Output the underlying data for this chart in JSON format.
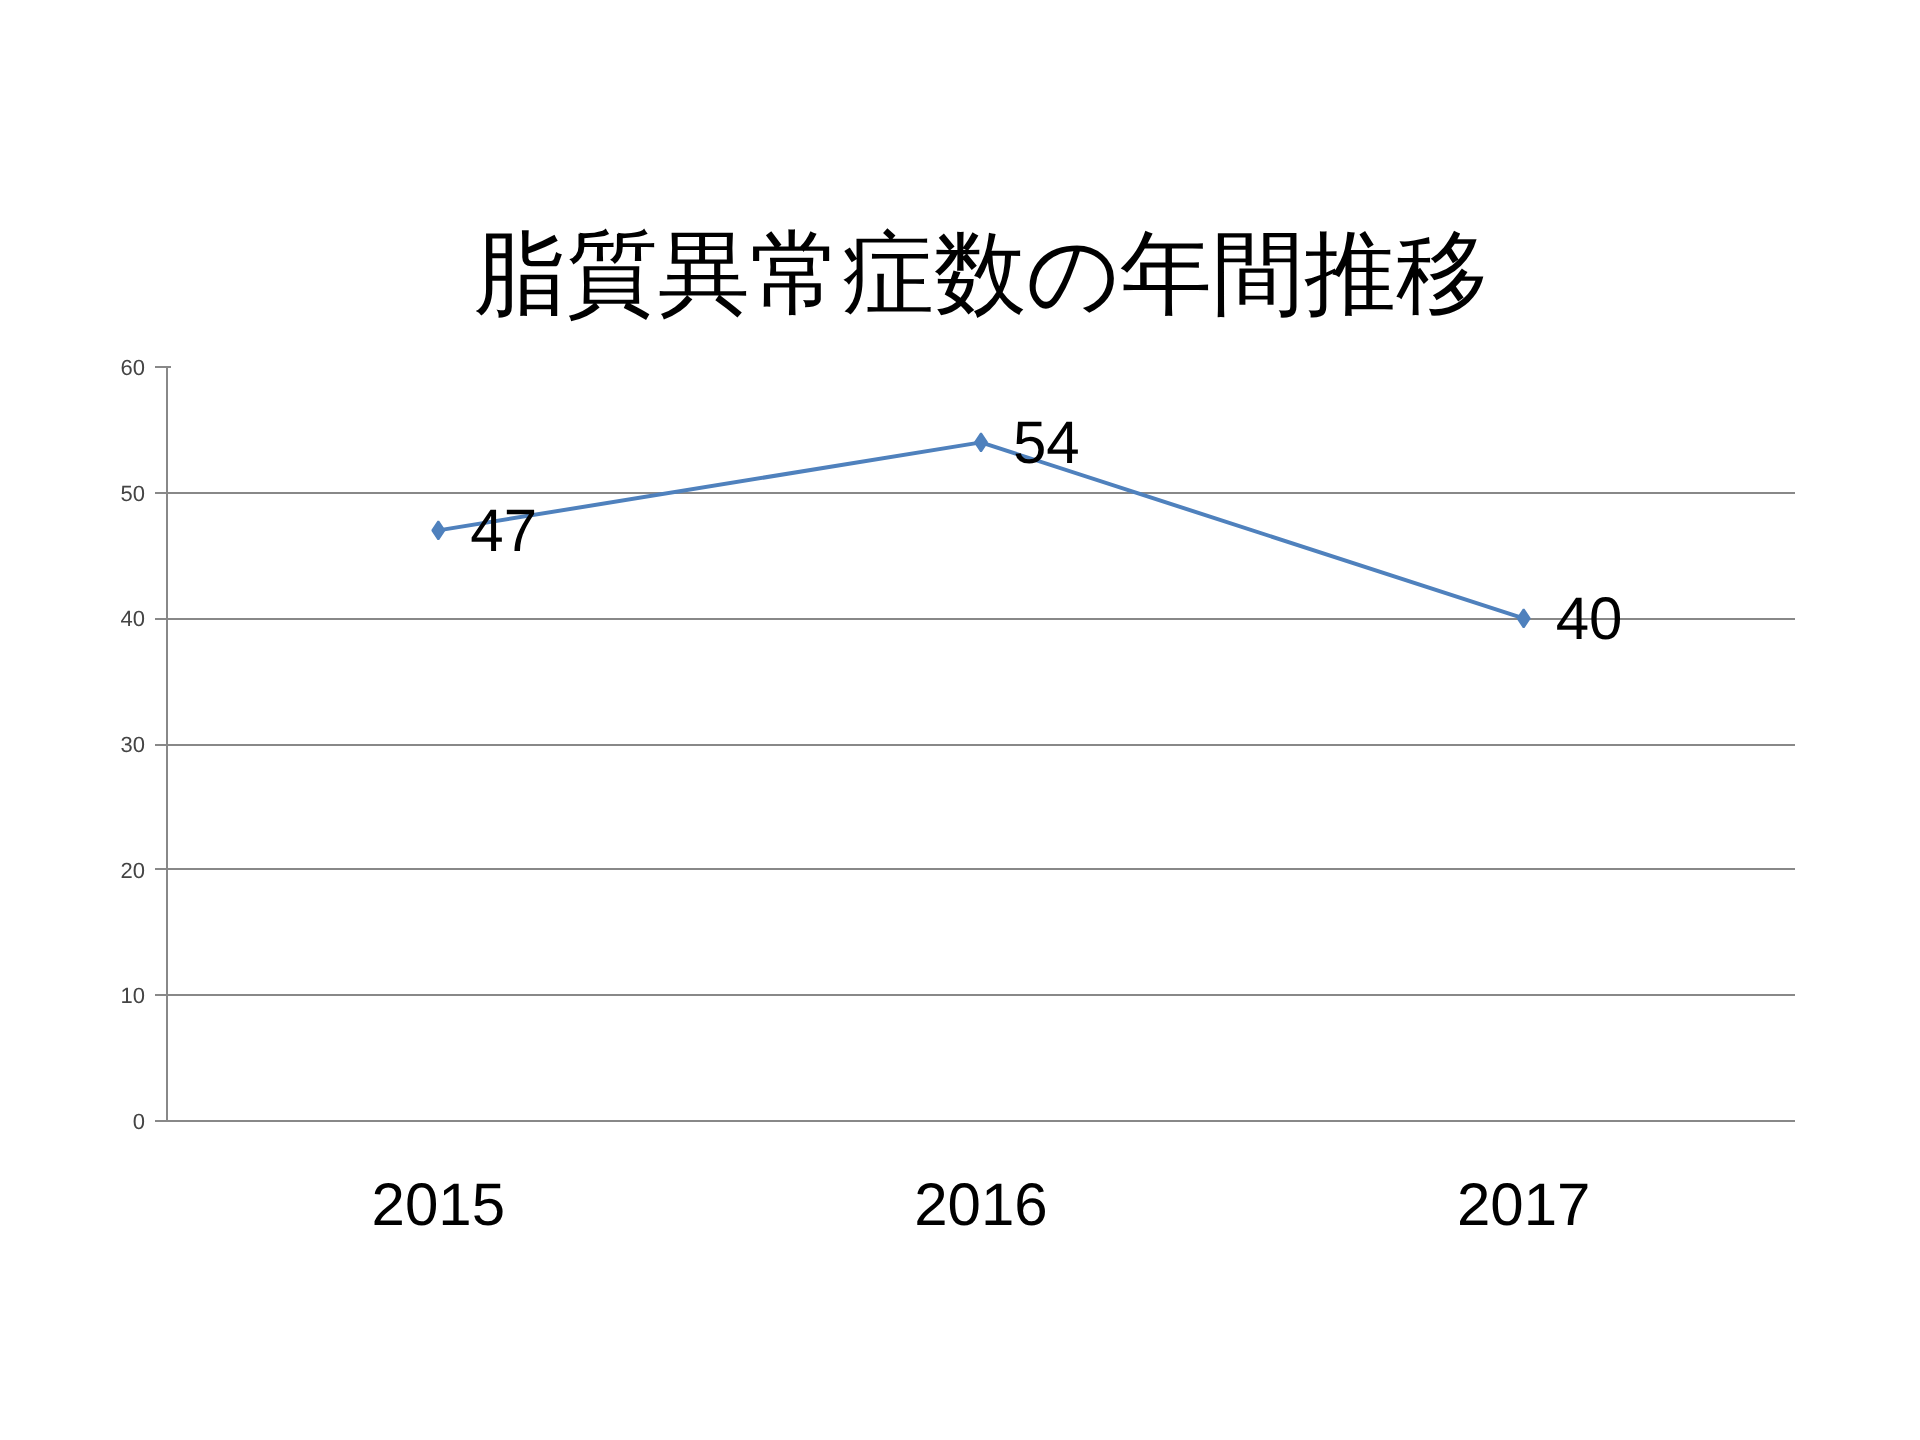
{
  "chart_data": {
    "type": "line",
    "title": "脂質異常症数の年間推移",
    "categories": [
      "2015",
      "2016",
      "2017"
    ],
    "series": [
      {
        "color": "#4f81bd",
        "values": [
          47,
          54,
          40
        ]
      }
    ],
    "ylim": [
      0,
      60
    ],
    "yticks": [
      0,
      10,
      20,
      30,
      40,
      50,
      60
    ],
    "grid": "y",
    "marker": "diamond",
    "line_style": "solid",
    "data_labels": true
  }
}
